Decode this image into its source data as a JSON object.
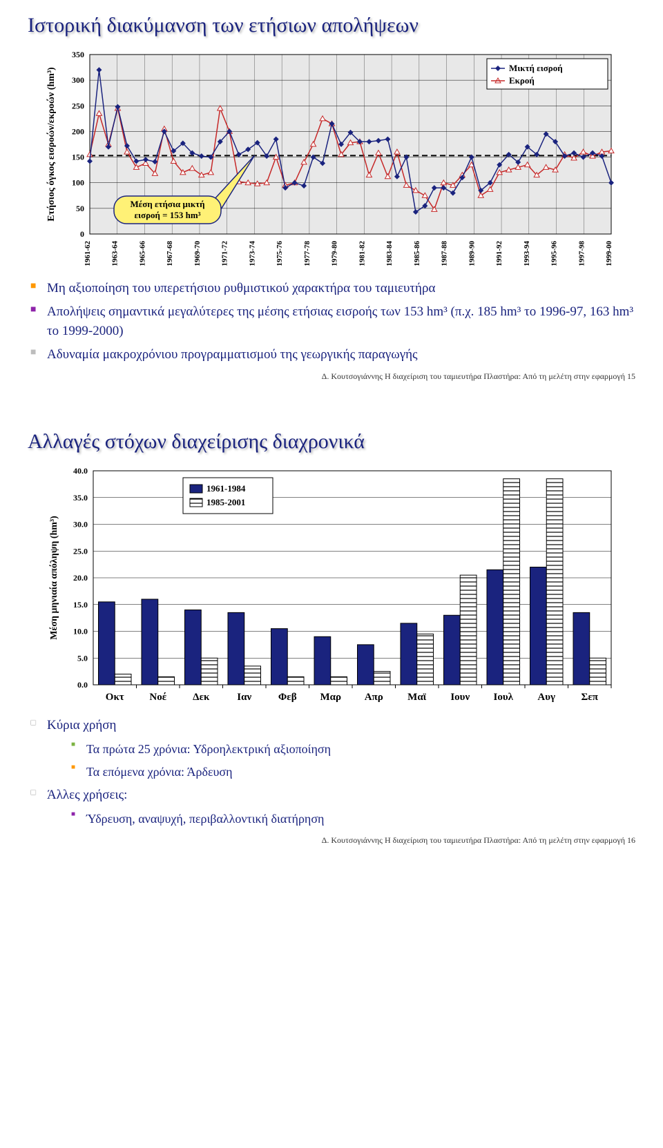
{
  "slide1": {
    "title": "Ιστορική διακύμανση των ετήσιων απολήψεων",
    "chart": {
      "type": "line",
      "ylabel": "Ετήσιος όγκος εισροών/εκροών (hm³)",
      "ylim": [
        0,
        350
      ],
      "ytick_step": 50,
      "yticks": [
        0,
        50,
        100,
        150,
        200,
        250,
        300,
        350
      ],
      "xlabels": [
        "1961-62",
        "1963-64",
        "1965-66",
        "1967-68",
        "1969-70",
        "1971-72",
        "1973-74",
        "1975-76",
        "1977-78",
        "1979-80",
        "1981-82",
        "1983-84",
        "1985-86",
        "1987-88",
        "1989-90",
        "1991-92",
        "1993-94",
        "1995-96",
        "1997-98",
        "1999-00"
      ],
      "legend": [
        "Μικτή εισροή",
        "Εκροή"
      ],
      "legend_markers": [
        "diamond",
        "triangle"
      ],
      "legend_colors": [
        "#1a237e",
        "#c62828"
      ],
      "callout": "Μέση ετήσια μικτή εισροή = 153 hm³",
      "callout_bg": "#fff176",
      "callout_stroke": "#1a237e",
      "background": "#ffffff",
      "grid_color": "#000000",
      "plot_area_color": "#e8e8e8",
      "reference_line": 153,
      "series1": {
        "name": "Μικτή εισροή",
        "color": "#1a237e",
        "marker": "diamond",
        "marker_fill": "#1a237e",
        "values": [
          142,
          320,
          170,
          248,
          172,
          142,
          145,
          141,
          200,
          162,
          177,
          158,
          152,
          150,
          180,
          200,
          155,
          165,
          178,
          152,
          185,
          90,
          100,
          94,
          150,
          138,
          215,
          175,
          198,
          180,
          180,
          182,
          185,
          112,
          150,
          43,
          55,
          90,
          90,
          80,
          110,
          150,
          85,
          100,
          135,
          155,
          140,
          170,
          155,
          195,
          180,
          152,
          158,
          150,
          158,
          152,
          100
        ]
      },
      "series2": {
        "name": "Εκροή",
        "color": "#c62828",
        "marker": "triangle",
        "marker_fill": "#ffffff",
        "values": [
          155,
          235,
          175,
          245,
          160,
          130,
          138,
          118,
          205,
          142,
          120,
          128,
          115,
          120,
          245,
          200,
          102,
          100,
          98,
          100,
          150,
          95,
          100,
          140,
          175,
          225,
          215,
          155,
          178,
          180,
          115,
          158,
          112,
          160,
          95,
          85,
          75,
          48,
          100,
          95,
          115,
          135,
          75,
          87,
          120,
          125,
          130,
          135,
          115,
          130,
          125,
          155,
          148,
          160,
          152,
          160,
          162
        ]
      }
    },
    "bullets": [
      {
        "marker_color": "orange",
        "text": "Μη αξιοποίηση του υπερετήσιου ρυθμιστικού χαρακτήρα του ταμιευτήρα"
      },
      {
        "marker_color": "purple",
        "text": "Απολήψεις σημαντικά μεγαλύτερες της μέσης ετήσιας εισροής των 153 hm³ (π.χ. 185 hm³ το 1996-97, 163 hm³ το 1999-2000)"
      },
      {
        "marker_color": "gray",
        "text": "Αδυναμία μακροχρόνιου προγραμματισμού της γεωργικής παραγωγής"
      }
    ],
    "footer": "Δ. Κουτσογιάννης Η διαχείριση του ταμιευτήρα Πλαστήρα: Από τη μελέτη στην εφαρμογή 15"
  },
  "slide2": {
    "title": "Αλλαγές στόχων διαχείρισης διαχρονικά",
    "chart": {
      "type": "bar",
      "ylabel": "Μέση μηνιαία απόληψη (hm³)",
      "ylim": [
        0,
        40
      ],
      "ytick_step": 5,
      "yticks": [
        0.0,
        5.0,
        10.0,
        15.0,
        20.0,
        25.0,
        30.0,
        35.0,
        40.0
      ],
      "categories": [
        "Οκτ",
        "Νοέ",
        "Δεκ",
        "Ιαν",
        "Φεβ",
        "Μαρ",
        "Απρ",
        "Μαϊ",
        "Ιουν",
        "Ιουλ",
        "Αυγ",
        "Σεπ"
      ],
      "legend": [
        "1961-1984",
        "1985-2001"
      ],
      "legend_colors": [
        "#1a237e",
        "#ffffff"
      ],
      "legend_hatch": [
        false,
        true
      ],
      "background": "#ffffff",
      "grid_color": "#000000",
      "bar_width": 0.38,
      "series1": {
        "name": "1961-1984",
        "color": "#1a237e",
        "values": [
          15.5,
          16.0,
          14.0,
          13.5,
          10.5,
          9.0,
          7.5,
          11.5,
          13.0,
          21.5,
          22.0,
          13.5
        ]
      },
      "series2": {
        "name": "1985-2001",
        "color": "#ffffff",
        "hatch": true,
        "values": [
          2.0,
          1.5,
          5.0,
          3.5,
          1.5,
          1.5,
          2.5,
          9.5,
          20.5,
          38.5,
          38.5,
          5.0
        ]
      }
    },
    "outline": [
      {
        "marker": "white",
        "text": "Κύρια χρήση",
        "subs": [
          {
            "marker": "green",
            "text": "Τα πρώτα 25 χρόνια: Υδροηλεκτρική αξιοποίηση"
          },
          {
            "marker": "orange",
            "text": "Τα επόμενα χρόνια: Άρδευση"
          }
        ]
      },
      {
        "marker": "white",
        "text": "Άλλες χρήσεις:",
        "subs": [
          {
            "marker": "purple",
            "text": "Ύδρευση, αναψυχή, περιβαλλοντική διατήρηση"
          }
        ]
      }
    ],
    "footer": "Δ. Κουτσογιάννης Η διαχείριση του ταμιευτήρα Πλαστήρα: Από τη μελέτη στην εφαρμογή 16"
  }
}
